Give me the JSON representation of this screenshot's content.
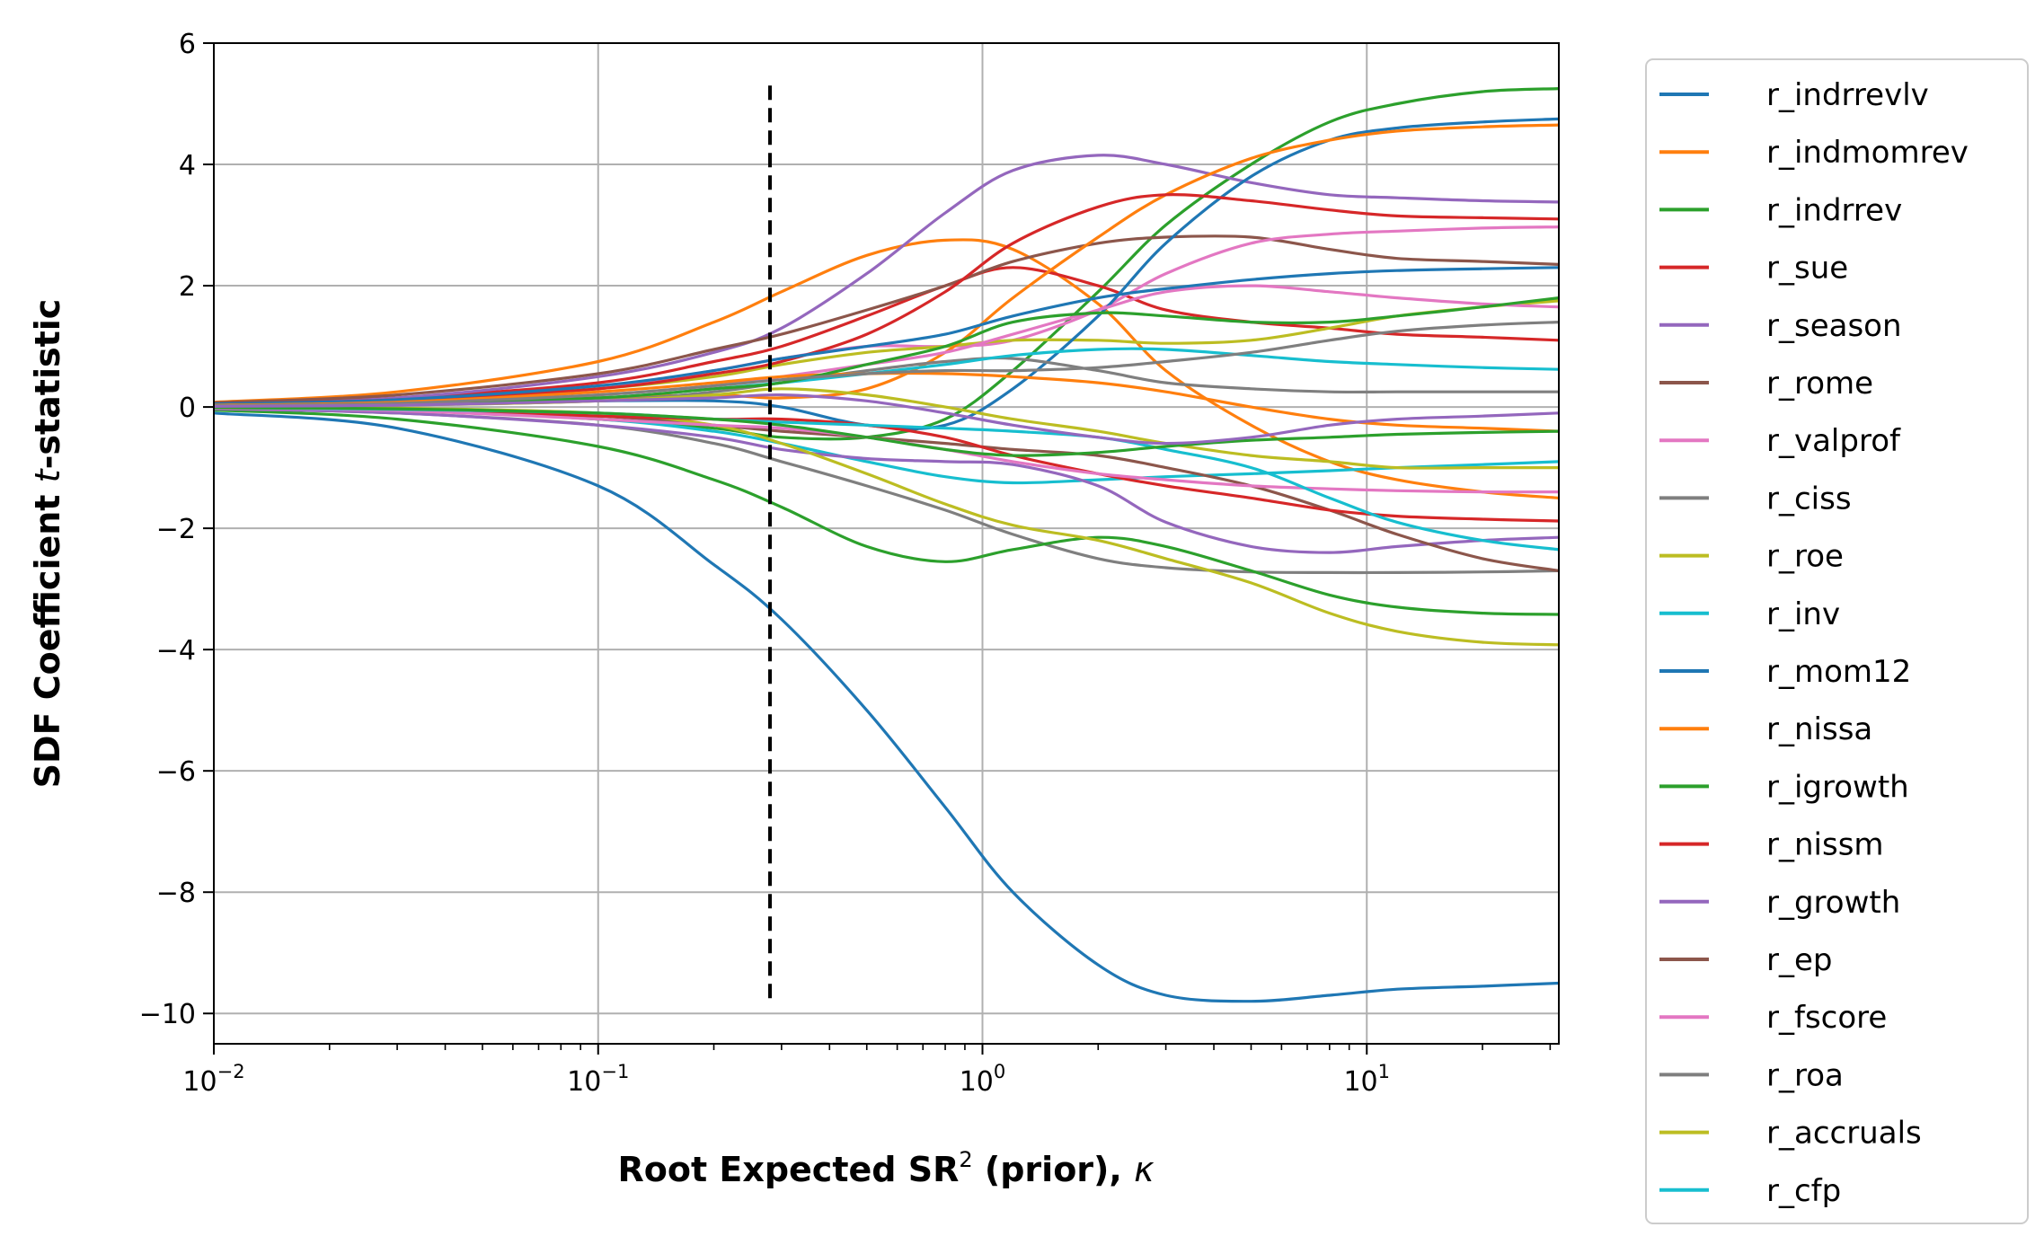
{
  "chart_data": {
    "type": "line",
    "xscale": "log",
    "xlim": [
      0.01,
      31.6
    ],
    "ylim": [
      -10.5,
      6
    ],
    "grid": true,
    "legend_position": "outside-right",
    "xlabel": "Root Expected SR",
    "xlabel_sup": "2",
    "xlabel_suffix": " (prior), ",
    "xlabel_symbol": "κ",
    "ylabel": "SDF Coefficient ",
    "ylabel_symbol": "t",
    "ylabel_suffix": "-statistic",
    "x_ticks": [
      {
        "value": 0.01,
        "base": "10",
        "exp": "−2"
      },
      {
        "value": 0.1,
        "base": "10",
        "exp": "−1"
      },
      {
        "value": 1,
        "base": "10",
        "exp": "0"
      },
      {
        "value": 10,
        "base": "10",
        "exp": "1"
      }
    ],
    "y_ticks": [
      {
        "value": 6,
        "label": "6"
      },
      {
        "value": 4,
        "label": "4"
      },
      {
        "value": 2,
        "label": "2"
      },
      {
        "value": 0,
        "label": "0"
      },
      {
        "value": -2,
        "label": "−2"
      },
      {
        "value": -4,
        "label": "−4"
      },
      {
        "value": -6,
        "label": "−6"
      },
      {
        "value": -8,
        "label": "−8"
      },
      {
        "value": -10,
        "label": "−10"
      }
    ],
    "vline": {
      "x": 0.28,
      "ymin": -9.8,
      "ymax": 5.3,
      "color": "#000000",
      "style": "dashed"
    },
    "x": [
      0.01,
      0.03,
      0.1,
      0.2,
      0.3,
      0.5,
      0.8,
      1.2,
      2,
      3,
      5,
      8,
      12,
      20,
      31.6
    ],
    "series": [
      {
        "name": "r_indrrevlv",
        "color": "#1f77b4",
        "values": [
          -0.1,
          -0.35,
          -1.3,
          -2.6,
          -3.5,
          -5.0,
          -6.6,
          -8.0,
          -9.2,
          -9.7,
          -9.8,
          -9.7,
          -9.6,
          -9.55,
          -9.5
        ]
      },
      {
        "name": "r_indmomrev",
        "color": "#ff7f0e",
        "values": [
          0.08,
          0.25,
          0.75,
          1.4,
          1.9,
          2.5,
          2.75,
          2.6,
          1.7,
          0.6,
          -0.3,
          -0.9,
          -1.2,
          -1.4,
          -1.5
        ]
      },
      {
        "name": "r_indrrev",
        "color": "#2ca02c",
        "values": [
          0.0,
          -0.05,
          -0.2,
          -0.35,
          -0.5,
          -0.5,
          -0.2,
          0.6,
          1.9,
          3.0,
          4.0,
          4.7,
          5.0,
          5.2,
          5.25
        ]
      },
      {
        "name": "r_sue",
        "color": "#d62728",
        "values": [
          0.05,
          0.15,
          0.4,
          0.75,
          1.0,
          1.5,
          2.0,
          2.3,
          2.0,
          1.6,
          1.4,
          1.3,
          1.2,
          1.15,
          1.1
        ]
      },
      {
        "name": "r_season",
        "color": "#9467bd",
        "values": [
          0.05,
          0.15,
          0.5,
          0.9,
          1.3,
          2.2,
          3.2,
          3.9,
          4.15,
          4.0,
          3.7,
          3.5,
          3.45,
          3.4,
          3.38
        ]
      },
      {
        "name": "r_rome",
        "color": "#8c564b",
        "values": [
          0.07,
          0.2,
          0.55,
          0.95,
          1.2,
          1.6,
          2.0,
          2.4,
          2.7,
          2.8,
          2.8,
          2.6,
          2.45,
          2.4,
          2.35
        ]
      },
      {
        "name": "r_valprof",
        "color": "#e377c2",
        "values": [
          0.04,
          0.1,
          0.3,
          0.6,
          0.8,
          1.0,
          1.0,
          1.1,
          1.6,
          2.2,
          2.7,
          2.85,
          2.9,
          2.95,
          2.97
        ]
      },
      {
        "name": "r_ciss",
        "color": "#7f7f7f",
        "values": [
          -0.03,
          -0.1,
          -0.3,
          -0.6,
          -0.9,
          -1.3,
          -1.7,
          -2.1,
          -2.5,
          -2.65,
          -2.72,
          -2.73,
          -2.73,
          -2.72,
          -2.7
        ]
      },
      {
        "name": "r_roe",
        "color": "#bcbd22",
        "values": [
          0.03,
          0.1,
          0.3,
          0.5,
          0.7,
          0.9,
          1.0,
          1.1,
          1.1,
          1.05,
          1.1,
          1.3,
          1.5,
          1.65,
          1.75
        ]
      },
      {
        "name": "r_inv",
        "color": "#17becf",
        "values": [
          0.0,
          -0.05,
          -0.2,
          -0.4,
          -0.6,
          -0.9,
          -1.15,
          -1.25,
          -1.2,
          -1.15,
          -1.1,
          -1.05,
          -1.0,
          -0.95,
          -0.9
        ]
      },
      {
        "name": "r_mom12",
        "color": "#1f77b4",
        "values": [
          0.02,
          0.05,
          0.1,
          0.1,
          0.0,
          -0.3,
          -0.3,
          0.3,
          1.5,
          2.7,
          3.8,
          4.4,
          4.6,
          4.7,
          4.75
        ]
      },
      {
        "name": "r_nissa",
        "color": "#ff7f0e",
        "values": [
          0.02,
          0.05,
          0.15,
          0.2,
          0.15,
          0.3,
          0.9,
          1.8,
          2.8,
          3.5,
          4.1,
          4.4,
          4.55,
          4.62,
          4.65
        ]
      },
      {
        "name": "r_igrowth",
        "color": "#2ca02c",
        "values": [
          -0.05,
          -0.2,
          -0.65,
          -1.2,
          -1.65,
          -2.3,
          -2.55,
          -2.35,
          -2.15,
          -2.3,
          -2.7,
          -3.1,
          -3.3,
          -3.4,
          -3.42
        ]
      },
      {
        "name": "r_nissm",
        "color": "#d62728",
        "values": [
          0.05,
          0.12,
          0.3,
          0.55,
          0.75,
          1.2,
          1.9,
          2.7,
          3.3,
          3.5,
          3.4,
          3.25,
          3.15,
          3.12,
          3.1
        ]
      },
      {
        "name": "r_growth",
        "color": "#9467bd",
        "values": [
          -0.03,
          -0.1,
          -0.3,
          -0.5,
          -0.7,
          -0.85,
          -0.9,
          -0.95,
          -1.3,
          -1.9,
          -2.3,
          -2.4,
          -2.3,
          -2.2,
          -2.15
        ]
      },
      {
        "name": "r_ep",
        "color": "#8c564b",
        "values": [
          -0.02,
          -0.05,
          -0.15,
          -0.3,
          -0.4,
          -0.5,
          -0.6,
          -0.7,
          -0.8,
          -1.0,
          -1.3,
          -1.7,
          -2.1,
          -2.5,
          -2.7
        ]
      },
      {
        "name": "r_fscore",
        "color": "#e377c2",
        "values": [
          0.02,
          0.06,
          0.2,
          0.35,
          0.5,
          0.7,
          0.9,
          1.2,
          1.6,
          1.9,
          2.0,
          1.9,
          1.8,
          1.7,
          1.65
        ]
      },
      {
        "name": "r_roa",
        "color": "#7f7f7f",
        "values": [
          0.01,
          0.03,
          0.1,
          0.25,
          0.4,
          0.6,
          0.75,
          0.8,
          0.6,
          0.4,
          0.3,
          0.25,
          0.25,
          0.25,
          0.25
        ]
      },
      {
        "name": "r_accruals",
        "color": "#bcbd22",
        "values": [
          0.0,
          -0.02,
          -0.1,
          -0.3,
          -0.6,
          -1.1,
          -1.6,
          -1.95,
          -2.2,
          -2.5,
          -2.9,
          -3.4,
          -3.7,
          -3.88,
          -3.92
        ]
      },
      {
        "name": "r_cfp",
        "color": "#17becf",
        "values": [
          0.02,
          0.05,
          0.15,
          0.3,
          0.4,
          0.55,
          0.7,
          0.85,
          0.95,
          0.95,
          0.85,
          0.75,
          0.7,
          0.65,
          0.62
        ]
      },
      {
        "color": "#1f77b4",
        "values": [
          0.05,
          0.12,
          0.35,
          0.6,
          0.8,
          1.0,
          1.2,
          1.5,
          1.8,
          1.95,
          2.1,
          2.2,
          2.25,
          2.28,
          2.3
        ]
      },
      {
        "color": "#ff7f0e",
        "values": [
          0.03,
          0.08,
          0.25,
          0.4,
          0.5,
          0.55,
          0.55,
          0.5,
          0.4,
          0.25,
          0.0,
          -0.2,
          -0.3,
          -0.35,
          -0.4
        ]
      },
      {
        "color": "#2ca02c",
        "values": [
          0.02,
          0.05,
          0.15,
          0.3,
          0.4,
          0.7,
          1.0,
          1.4,
          1.55,
          1.5,
          1.4,
          1.4,
          1.5,
          1.65,
          1.8
        ]
      },
      {
        "color": "#d62728",
        "values": [
          0.0,
          -0.05,
          -0.15,
          -0.2,
          -0.2,
          -0.3,
          -0.5,
          -0.8,
          -1.1,
          -1.3,
          -1.5,
          -1.7,
          -1.8,
          -1.85,
          -1.88
        ]
      },
      {
        "color": "#7f7f7f",
        "values": [
          0.02,
          0.06,
          0.2,
          0.35,
          0.45,
          0.55,
          0.6,
          0.6,
          0.65,
          0.75,
          0.9,
          1.1,
          1.25,
          1.35,
          1.4
        ]
      },
      {
        "color": "#e377c2",
        "values": [
          -0.02,
          -0.06,
          -0.2,
          -0.3,
          -0.35,
          -0.5,
          -0.7,
          -0.9,
          -1.1,
          -1.2,
          -1.3,
          -1.35,
          -1.38,
          -1.4,
          -1.4
        ]
      },
      {
        "color": "#17becf",
        "values": [
          -0.01,
          -0.04,
          -0.1,
          -0.2,
          -0.25,
          -0.3,
          -0.35,
          -0.4,
          -0.5,
          -0.7,
          -1.0,
          -1.5,
          -1.9,
          -2.2,
          -2.35
        ]
      },
      {
        "color": "#bcbd22",
        "values": [
          0.01,
          0.03,
          0.1,
          0.2,
          0.3,
          0.2,
          0.0,
          -0.2,
          -0.4,
          -0.6,
          -0.8,
          -0.9,
          -1.0,
          -1.0,
          -1.0
        ]
      },
      {
        "color": "#2ca02c",
        "values": [
          -0.01,
          -0.03,
          -0.1,
          -0.2,
          -0.3,
          -0.5,
          -0.7,
          -0.8,
          -0.75,
          -0.65,
          -0.55,
          -0.5,
          -0.45,
          -0.42,
          -0.4
        ]
      },
      {
        "color": "#9467bd",
        "values": [
          0.01,
          0.03,
          0.1,
          0.15,
          0.2,
          0.1,
          -0.1,
          -0.3,
          -0.5,
          -0.6,
          -0.5,
          -0.3,
          -0.2,
          -0.15,
          -0.1
        ]
      }
    ]
  }
}
